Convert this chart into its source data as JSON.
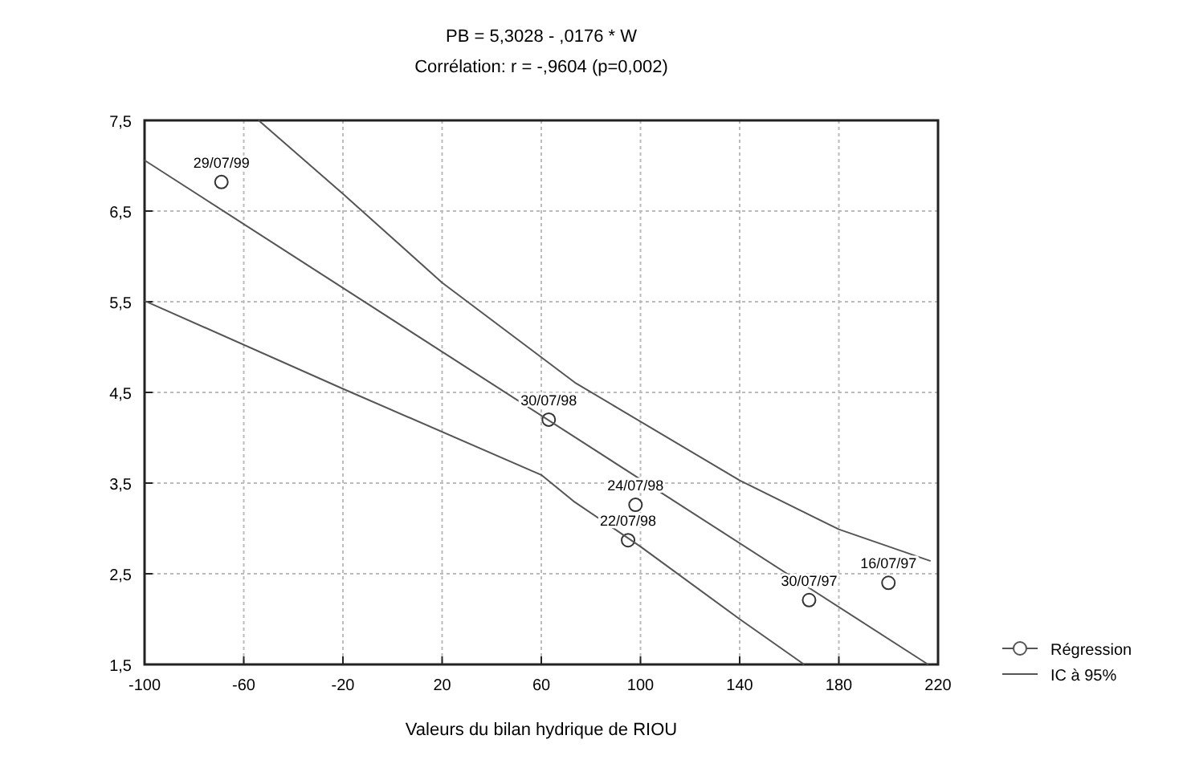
{
  "chart_data": {
    "type": "scatter",
    "title": "PB = 5,3028 - ,0176 * W",
    "subtitle": "Corrélation: r = -,9604 (p=0,002)",
    "xlabel": "Valeurs du bilan hydrique de RIOU",
    "xlim": [
      -100,
      220
    ],
    "xticks": [
      -100,
      -60,
      -20,
      20,
      60,
      100,
      140,
      180,
      220
    ],
    "ylim": [
      1.5,
      7.5
    ],
    "yticks": [
      {
        "value": 1.5,
        "label": "1,5"
      },
      {
        "value": 2.5,
        "label": "2,5"
      },
      {
        "value": 3.5,
        "label": "3,5"
      },
      {
        "value": 4.5,
        "label": "4,5"
      },
      {
        "value": 5.5,
        "label": "5,5"
      },
      {
        "value": 6.5,
        "label": "6,5"
      },
      {
        "value": 7.5,
        "label": "7,5"
      }
    ],
    "grid": true,
    "legend": "bottom right",
    "series": [
      {
        "marker": "circle",
        "color": "#333333",
        "x": [
          -69,
          63,
          98,
          95,
          168,
          200
        ],
        "values": [
          6.82,
          4.2,
          3.26,
          2.87,
          2.21,
          2.4
        ]
      },
      {
        "type": "line",
        "name": "Régression",
        "color": "#555555",
        "x": [
          -100,
          216
        ],
        "values": [
          7.06,
          1.5
        ]
      },
      {
        "type": "line",
        "name": "IC à 95%",
        "color": "#555555",
        "x": [
          -54,
          -20,
          20,
          74,
          140,
          180,
          217
        ],
        "values": [
          7.5,
          6.69,
          5.71,
          4.6,
          3.53,
          2.99,
          2.64
        ]
      },
      {
        "type": "line",
        "color": "#555555",
        "x": [
          -100,
          -20,
          60,
          73,
          100,
          140,
          166
        ],
        "values": [
          5.51,
          4.54,
          3.59,
          3.3,
          2.8,
          2.0,
          1.5
        ]
      }
    ],
    "annotations": [
      {
        "text": "29/07/99",
        "x": -69,
        "y": 6.82
      },
      {
        "text": "30/07/98",
        "x": 63,
        "y": 4.2
      },
      {
        "text": "24/07/98",
        "x": 98,
        "y": 3.26
      },
      {
        "text": "22/07/98",
        "x": 95,
        "y": 2.87
      },
      {
        "text": "30/07/97",
        "x": 168,
        "y": 2.21
      },
      {
        "text": "16/07/97",
        "x": 200,
        "y": 2.4
      }
    ]
  }
}
